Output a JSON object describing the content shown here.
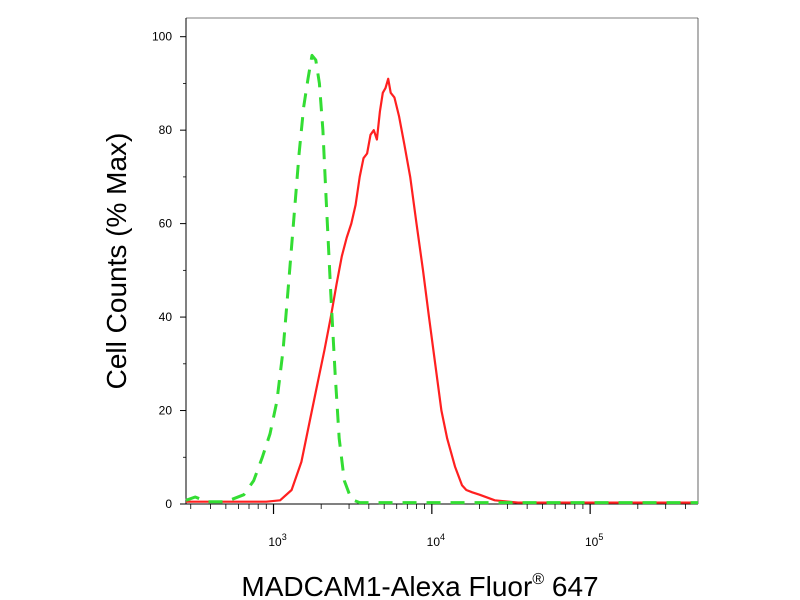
{
  "chart_data": {
    "type": "line",
    "xlabel": "MADCAM1-Alexa Fluor",
    "xlabel_sup": "®",
    "xlabel_suffix": " 647",
    "ylabel": "Cell Counts (% Max)",
    "x_scale": "log",
    "xlim": [
      280,
      480000
    ],
    "ylim": [
      0,
      104
    ],
    "y_ticks": [
      0,
      20,
      40,
      60,
      80,
      100
    ],
    "y_tick_labels": [
      "0",
      "20",
      "40",
      "60",
      "80",
      "100"
    ],
    "x_tick_labels": [
      {
        "value": 1000,
        "base": "10",
        "exp": "3"
      },
      {
        "value": 10000,
        "base": "10",
        "exp": "4"
      },
      {
        "value": 100000,
        "base": "10",
        "exp": "5"
      }
    ],
    "grid": false,
    "legend": "none",
    "series": [
      {
        "color": "#ff2020",
        "style": "solid",
        "points": [
          [
            280,
            0.5
          ],
          [
            500,
            0.5
          ],
          [
            900,
            0.5
          ],
          [
            1100,
            0.8
          ],
          [
            1300,
            3
          ],
          [
            1500,
            9
          ],
          [
            1700,
            18
          ],
          [
            1900,
            26
          ],
          [
            2100,
            33
          ],
          [
            2300,
            40
          ],
          [
            2500,
            47
          ],
          [
            2700,
            53
          ],
          [
            2900,
            57
          ],
          [
            3100,
            60
          ],
          [
            3300,
            64
          ],
          [
            3500,
            70
          ],
          [
            3700,
            74
          ],
          [
            3900,
            75
          ],
          [
            4100,
            79
          ],
          [
            4300,
            80
          ],
          [
            4500,
            78
          ],
          [
            4700,
            84
          ],
          [
            4900,
            88
          ],
          [
            5100,
            89
          ],
          [
            5300,
            91
          ],
          [
            5500,
            88
          ],
          [
            5800,
            87
          ],
          [
            6200,
            83
          ],
          [
            6700,
            77
          ],
          [
            7300,
            70
          ],
          [
            8000,
            60
          ],
          [
            8800,
            50
          ],
          [
            9600,
            40
          ],
          [
            10500,
            30
          ],
          [
            11500,
            20
          ],
          [
            12500,
            14
          ],
          [
            14000,
            8
          ],
          [
            15500,
            4
          ],
          [
            16500,
            3
          ],
          [
            18000,
            2.5
          ],
          [
            20000,
            2
          ],
          [
            25000,
            0.8
          ],
          [
            35000,
            0.3
          ],
          [
            100000,
            0.3
          ],
          [
            480000,
            0.3
          ]
        ]
      },
      {
        "color": "#33dd33",
        "style": "dashed",
        "points": [
          [
            280,
            0.8
          ],
          [
            320,
            1.5
          ],
          [
            380,
            0.5
          ],
          [
            500,
            0.5
          ],
          [
            650,
            2
          ],
          [
            750,
            5
          ],
          [
            850,
            10
          ],
          [
            950,
            15
          ],
          [
            1050,
            22
          ],
          [
            1150,
            33
          ],
          [
            1250,
            48
          ],
          [
            1350,
            62
          ],
          [
            1450,
            75
          ],
          [
            1550,
            85
          ],
          [
            1650,
            91
          ],
          [
            1750,
            96
          ],
          [
            1850,
            95
          ],
          [
            1950,
            90
          ],
          [
            2050,
            80
          ],
          [
            2150,
            65
          ],
          [
            2300,
            45
          ],
          [
            2450,
            28
          ],
          [
            2600,
            14
          ],
          [
            2800,
            5
          ],
          [
            3100,
            1
          ],
          [
            3500,
            0.3
          ],
          [
            10000,
            0.3
          ],
          [
            480000,
            0.3
          ]
        ]
      }
    ]
  }
}
